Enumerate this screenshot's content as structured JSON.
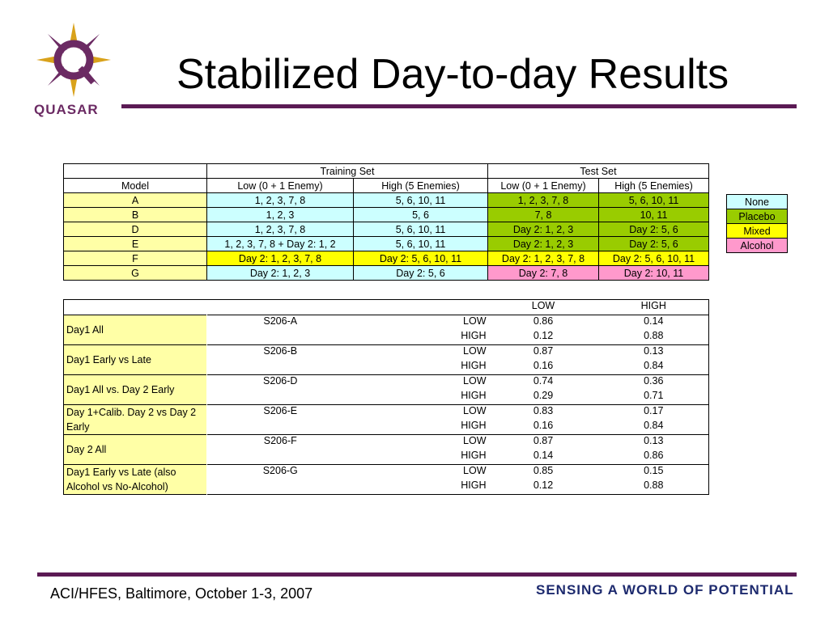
{
  "header": {
    "title": "Stabilized Day-to-day Results",
    "logo_text": "QUASAR"
  },
  "colors": {
    "rule": "#5b1a54",
    "none": "#ccffff",
    "placebo": "#99cc00",
    "mixed": "#ffff00",
    "alcohol": "#ff99cc",
    "model": "#ffffa6"
  },
  "table1": {
    "group_headers": [
      "Training Set",
      "Test Set"
    ],
    "columns": [
      "Model",
      "Low (0 + 1 Enemy)",
      "High (5 Enemies)",
      "Low (0 + 1 Enemy)",
      "High (5 Enemies)"
    ],
    "rows": [
      [
        "A",
        "1, 2, 3, 7, 8",
        "5, 6, 10, 11",
        "1, 2, 3, 7, 8",
        "5, 6, 10, 11"
      ],
      [
        "B",
        "1, 2, 3",
        "5, 6",
        "7, 8",
        "10, 11"
      ],
      [
        "D",
        "1, 2, 3, 7, 8",
        "5, 6, 10, 11",
        "Day 2: 1, 2, 3",
        "Day 2:  5, 6"
      ],
      [
        "E",
        "1, 2, 3, 7, 8 + Day 2: 1, 2",
        "5, 6, 10, 11",
        "Day 2: 1, 2, 3",
        "Day 2: 5, 6"
      ],
      [
        "F",
        "Day 2: 1, 2, 3, 7, 8",
        "Day 2: 5, 6, 10, 11",
        "Day 2: 1, 2, 3, 7, 8",
        "Day 2: 5, 6, 10, 11"
      ],
      [
        "G",
        "Day 2: 1, 2, 3",
        "Day 2: 5, 6",
        "Day 2: 7, 8",
        "Day 2: 10, 11"
      ]
    ]
  },
  "legend": [
    "None",
    "Placebo",
    "Mixed",
    "Alcohol"
  ],
  "table2": {
    "columns": [
      "LOW",
      "HIGH"
    ],
    "groups": [
      {
        "label": "Day1 All",
        "model": "S206-A",
        "rows": [
          [
            "LOW",
            "0.86",
            "0.14"
          ],
          [
            "HIGH",
            "0.12",
            "0.88"
          ]
        ]
      },
      {
        "label": "Day1 Early vs Late",
        "model": "S206-B",
        "rows": [
          [
            "LOW",
            "0.87",
            "0.13"
          ],
          [
            "HIGH",
            "0.16",
            "0.84"
          ]
        ]
      },
      {
        "label": "Day1 All vs. Day 2 Early",
        "model": "S206-D",
        "rows": [
          [
            "LOW",
            "0.74",
            "0.36"
          ],
          [
            "HIGH",
            "0.29",
            "0.71"
          ]
        ]
      },
      {
        "label": "Day 1+Calib. Day 2 vs Day 2 Early",
        "model": "S206-E",
        "rows": [
          [
            "LOW",
            "0.83",
            "0.17"
          ],
          [
            "HIGH",
            "0.16",
            "0.84"
          ]
        ]
      },
      {
        "label": "Day 2 All",
        "model": "S206-F",
        "rows": [
          [
            "LOW",
            "0.87",
            "0.13"
          ],
          [
            "HIGH",
            "0.14",
            "0.86"
          ]
        ]
      },
      {
        "label": "Day1 Early vs Late (also Alcohol vs No-Alcohol)",
        "model": "S206-G",
        "rows": [
          [
            "LOW",
            "0.85",
            "0.15"
          ],
          [
            "HIGH",
            "0.12",
            "0.88"
          ]
        ]
      }
    ]
  },
  "footer": {
    "left": "ACI/HFES, Baltimore, October 1-3, 2007",
    "right": "SENSING A WORLD OF POTENTIAL"
  }
}
